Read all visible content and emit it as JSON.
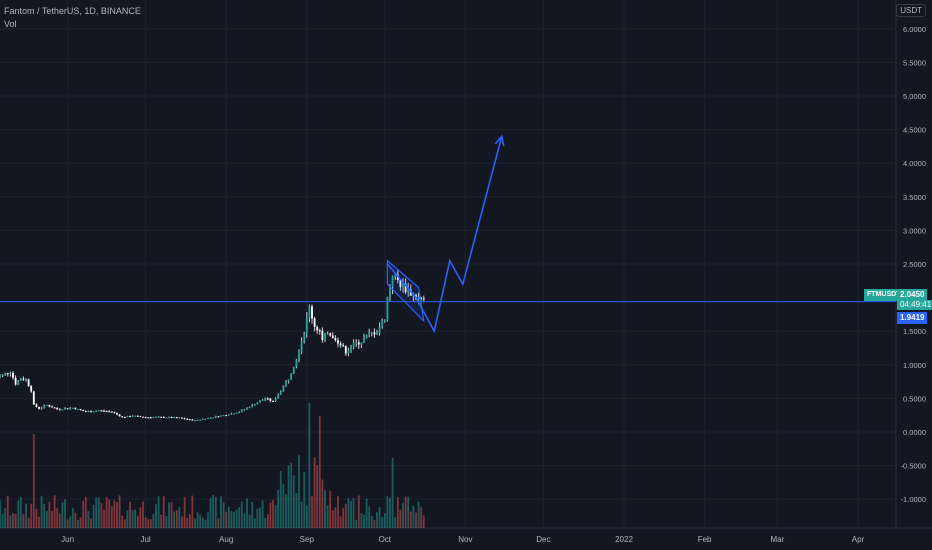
{
  "header": {
    "title": "Fantom / TetherUS, 1D, BINANCE",
    "volume_label": "Vol",
    "currency_button": "USDT"
  },
  "price_scale": {
    "ticks": [
      "6.0000",
      "5.5000",
      "5.0000",
      "4.5000",
      "4.0000",
      "3.5000",
      "3.0000",
      "2.5000",
      "1.5000",
      "1.0000",
      "0.5000",
      "0.0000",
      "-0.5000",
      "-1.0000"
    ]
  },
  "time_axis": {
    "labels": [
      "Jun",
      "Jul",
      "Aug",
      "Sep",
      "Oct",
      "Nov",
      "Dec",
      "2022",
      "Feb",
      "Mar",
      "Apr"
    ]
  },
  "markers": {
    "symbol_tag": "FTMUSDT",
    "last_price": "2.0450",
    "countdown": "04:49:41",
    "secondary_price": "1.9419"
  },
  "colors": {
    "background": "#131722",
    "up": "#26a69a",
    "down": "#ef5350",
    "drawing": "#2962ff",
    "horizontal_line": "#2962ff",
    "grid": "#1e222d"
  },
  "chart_data": {
    "type": "candlestick",
    "title": "Fantom / TetherUS, 1D, BINANCE",
    "ylim": [
      -1.45,
      6.3
    ],
    "y_ticks": [
      6.0,
      5.5,
      5.0,
      4.5,
      4.0,
      3.5,
      3.0,
      2.5,
      1.5,
      1.0,
      0.5,
      0.0,
      -0.5,
      -1.0
    ],
    "horizontal_line": 1.94,
    "close_path": [
      [
        "2021-05-04",
        0.8
      ],
      [
        "2021-05-07",
        0.85
      ],
      [
        "2021-05-10",
        0.9
      ],
      [
        "2021-05-12",
        0.72
      ],
      [
        "2021-05-14",
        0.8
      ],
      [
        "2021-05-16",
        0.78
      ],
      [
        "2021-05-18",
        0.62
      ],
      [
        "2021-05-19",
        0.4
      ],
      [
        "2021-05-21",
        0.35
      ],
      [
        "2021-05-24",
        0.4
      ],
      [
        "2021-05-28",
        0.34
      ],
      [
        "2021-06-03",
        0.36
      ],
      [
        "2021-06-08",
        0.3
      ],
      [
        "2021-06-13",
        0.32
      ],
      [
        "2021-06-18",
        0.3
      ],
      [
        "2021-06-22",
        0.22
      ],
      [
        "2021-06-26",
        0.24
      ],
      [
        "2021-07-01",
        0.22
      ],
      [
        "2021-07-08",
        0.22
      ],
      [
        "2021-07-14",
        0.21
      ],
      [
        "2021-07-20",
        0.17
      ],
      [
        "2021-07-24",
        0.2
      ],
      [
        "2021-07-31",
        0.25
      ],
      [
        "2021-08-06",
        0.3
      ],
      [
        "2021-08-11",
        0.4
      ],
      [
        "2021-08-16",
        0.5
      ],
      [
        "2021-08-19",
        0.45
      ],
      [
        "2021-08-22",
        0.62
      ],
      [
        "2021-08-25",
        0.8
      ],
      [
        "2021-08-28",
        1.1
      ],
      [
        "2021-08-31",
        1.5
      ],
      [
        "2021-09-02",
        1.85
      ],
      [
        "2021-09-04",
        1.58
      ],
      [
        "2021-09-06",
        1.5
      ],
      [
        "2021-09-07",
        1.35
      ],
      [
        "2021-09-09",
        1.5
      ],
      [
        "2021-09-12",
        1.4
      ],
      [
        "2021-09-14",
        1.3
      ],
      [
        "2021-09-16",
        1.2
      ],
      [
        "2021-09-19",
        1.3
      ],
      [
        "2021-09-22",
        1.35
      ],
      [
        "2021-09-25",
        1.45
      ],
      [
        "2021-09-28",
        1.5
      ],
      [
        "2021-10-01",
        1.7
      ],
      [
        "2021-10-02",
        2.0
      ],
      [
        "2021-10-04",
        2.35
      ],
      [
        "2021-10-07",
        2.2
      ],
      [
        "2021-10-10",
        2.1
      ],
      [
        "2021-10-13",
        2.0
      ],
      [
        "2021-10-16",
        1.95
      ]
    ],
    "projection_path": [
      [
        "2021-10-02",
        2.5
      ],
      [
        "2021-10-13",
        2.0
      ],
      [
        "2021-10-20",
        1.5
      ],
      [
        "2021-10-26",
        2.55
      ],
      [
        "2021-10-31",
        2.2
      ],
      [
        "2021-11-15",
        4.4
      ]
    ],
    "channel": {
      "upper": [
        [
          "2021-10-02",
          2.55
        ],
        [
          "2021-10-14",
          2.15
        ]
      ],
      "lower": [
        [
          "2021-10-02",
          2.2
        ],
        [
          "2021-10-16",
          1.65
        ]
      ]
    }
  }
}
